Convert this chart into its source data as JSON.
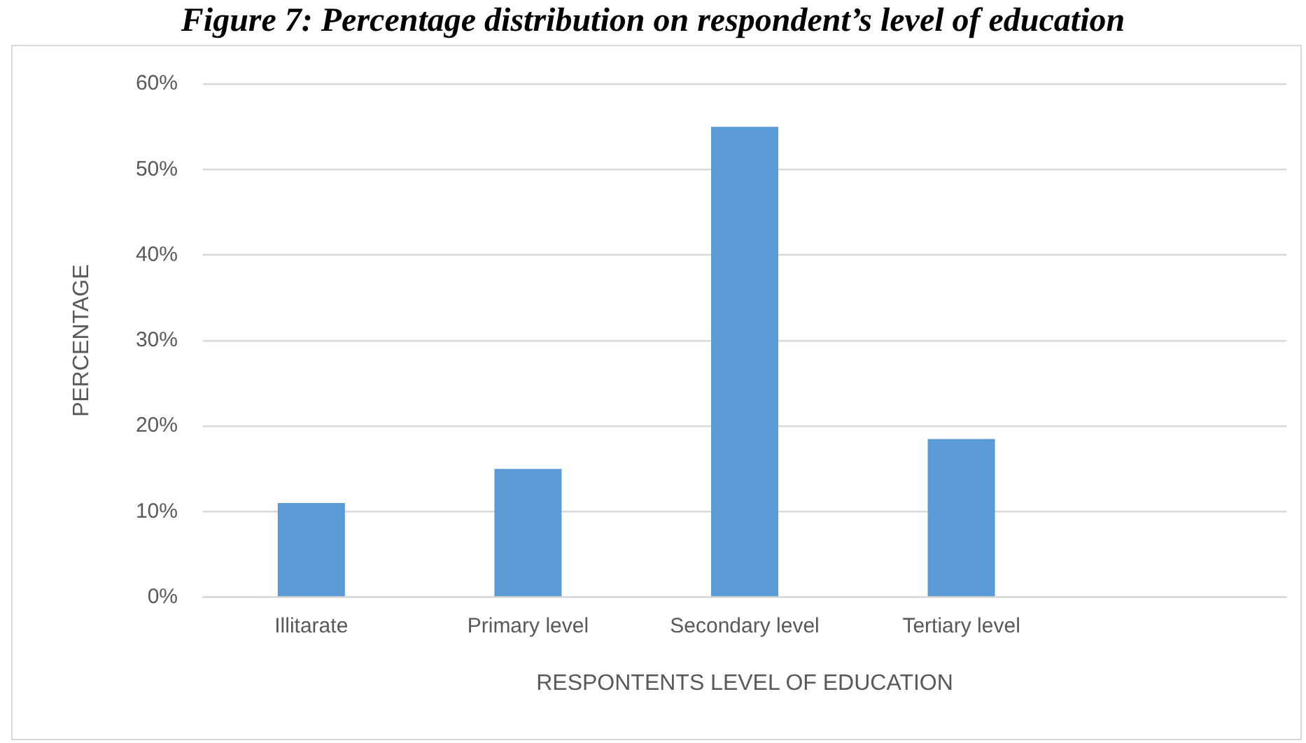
{
  "chart_data": {
    "type": "bar",
    "title": "Figure 7: Percentage distribution on respondent’s level of education",
    "xlabel": "RESPONTENTS LEVEL OF EDUCATION",
    "ylabel": "PERCENTAGE",
    "categories": [
      "Illitarate",
      "Primary level",
      "Secondary level",
      "Tertiary level",
      null
    ],
    "values": [
      11,
      15,
      55,
      18.5,
      null
    ],
    "color": "#5b9bd5",
    "ylim": [
      0,
      60
    ],
    "yticks": [
      {
        "value": 0,
        "label": "0%"
      },
      {
        "value": 10,
        "label": "10%"
      },
      {
        "value": 20,
        "label": "20%"
      },
      {
        "value": 30,
        "label": "30%"
      },
      {
        "value": 40,
        "label": "40%"
      },
      {
        "value": 50,
        "label": "50%"
      },
      {
        "value": 60,
        "label": "60%"
      }
    ],
    "grid": "y"
  }
}
